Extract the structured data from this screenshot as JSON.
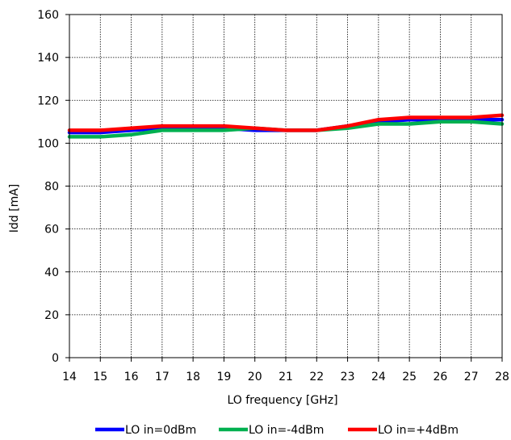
{
  "chart_data": {
    "type": "line",
    "xlabel": "LO frequency [GHz]",
    "ylabel": "Idd [mA]",
    "xlim": [
      14,
      28
    ],
    "ylim": [
      0,
      160
    ],
    "x_ticks": [
      "14",
      "15",
      "16",
      "17",
      "18",
      "19",
      "20",
      "21",
      "22",
      "23",
      "24",
      "25",
      "26",
      "27",
      "28"
    ],
    "y_ticks": [
      "0",
      "20",
      "40",
      "60",
      "80",
      "100",
      "120",
      "140",
      "160"
    ],
    "grid": true,
    "legend_position": "bottom",
    "x": [
      14,
      15,
      16,
      17,
      18,
      19,
      20,
      21,
      22,
      23,
      24,
      25,
      26,
      27,
      28
    ],
    "series": [
      {
        "name": "LO in=0dBm",
        "color": "#0000ff",
        "values": [
          105,
          105,
          106,
          107,
          107,
          107,
          106,
          106,
          106,
          108,
          110,
          111,
          111,
          111,
          111
        ]
      },
      {
        "name": "LO in=-4dBm",
        "color": "#00b050",
        "values": [
          103,
          103,
          104,
          106,
          106,
          106,
          107,
          106,
          106,
          107,
          109,
          109,
          110,
          110,
          109
        ]
      },
      {
        "name": "LO in=+4dBm",
        "color": "#ff0000",
        "values": [
          106,
          106,
          107,
          108,
          108,
          108,
          107,
          106,
          106,
          108,
          111,
          112,
          112,
          112,
          113
        ]
      }
    ]
  }
}
